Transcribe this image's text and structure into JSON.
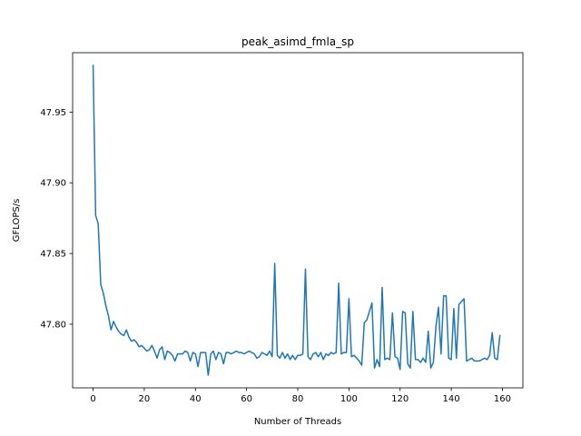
{
  "chart_data": {
    "type": "line",
    "title": "peak_asimd_fmla_sp",
    "xlabel": "Number of Threads",
    "ylabel": "GFLOPS/s",
    "xlim": [
      -8,
      168
    ],
    "ylim": [
      47.755,
      47.992
    ],
    "xticks": [
      0,
      20,
      40,
      60,
      80,
      100,
      120,
      140,
      160
    ],
    "yticks": [
      47.8,
      47.85,
      47.9,
      47.95
    ],
    "ytick_labels": [
      "47.80",
      "47.85",
      "47.90",
      "47.95"
    ],
    "grid": false,
    "line_color": "#1f77b4",
    "series": [
      {
        "x": [
          0,
          1,
          2,
          3,
          4,
          5,
          6,
          7,
          8,
          9,
          10,
          11,
          12,
          13,
          14,
          15,
          16,
          17,
          18,
          19,
          20,
          21,
          22,
          23,
          24,
          25,
          26,
          27,
          28,
          29,
          30,
          31,
          32,
          33,
          34,
          35,
          36,
          37,
          38,
          39,
          40,
          41,
          42,
          43,
          44,
          45,
          46,
          47,
          48,
          49,
          50,
          51,
          52,
          53,
          54,
          55,
          56,
          57,
          58,
          59,
          60,
          61,
          62,
          63,
          64,
          65,
          66,
          67,
          68,
          69,
          70,
          71,
          72,
          73,
          74,
          75,
          76,
          77,
          78,
          79,
          80,
          81,
          82,
          83,
          84,
          85,
          86,
          87,
          88,
          89,
          90,
          91,
          92,
          93,
          94,
          95,
          96,
          97,
          98,
          99,
          100,
          101,
          102,
          103,
          104,
          105,
          106,
          107,
          108,
          109,
          110,
          111,
          112,
          113,
          114,
          115,
          116,
          117,
          118,
          119,
          120,
          121,
          122,
          123,
          124,
          125,
          126,
          127,
          128,
          129,
          130,
          131,
          132,
          133,
          134,
          135,
          136,
          137,
          138,
          139,
          140,
          141,
          142,
          143,
          144,
          145,
          146,
          147,
          148,
          149,
          150,
          151,
          152,
          153,
          154,
          155,
          156,
          157,
          158,
          159
        ],
        "values": [
          47.983,
          47.877,
          47.871,
          47.828,
          47.822,
          47.813,
          47.806,
          47.796,
          47.802,
          47.798,
          47.795,
          47.793,
          47.792,
          47.796,
          47.791,
          47.788,
          47.789,
          47.787,
          47.784,
          47.785,
          47.783,
          47.781,
          47.782,
          47.785,
          47.781,
          47.776,
          47.782,
          47.784,
          47.775,
          47.781,
          47.78,
          47.778,
          47.774,
          47.779,
          47.779,
          47.779,
          47.781,
          47.78,
          47.774,
          47.78,
          47.779,
          47.77,
          47.78,
          47.78,
          47.78,
          47.764,
          47.779,
          47.781,
          47.775,
          47.78,
          47.779,
          47.772,
          47.78,
          47.78,
          47.779,
          47.78,
          47.781,
          47.78,
          47.78,
          47.779,
          47.78,
          47.781,
          47.78,
          47.779,
          47.776,
          47.777,
          47.78,
          47.779,
          47.778,
          47.781,
          47.777,
          47.843,
          47.778,
          47.776,
          47.78,
          47.776,
          47.779,
          47.775,
          47.778,
          47.775,
          47.778,
          47.778,
          47.779,
          47.839,
          47.777,
          47.775,
          47.779,
          47.78,
          47.777,
          47.78,
          47.775,
          47.779,
          47.778,
          47.78,
          47.779,
          47.78,
          47.829,
          47.779,
          47.78,
          47.78,
          47.818,
          47.777,
          47.778,
          47.776,
          47.774,
          47.771,
          47.801,
          47.803,
          47.809,
          47.815,
          47.769,
          47.775,
          47.77,
          47.826,
          47.775,
          47.776,
          47.775,
          47.808,
          47.777,
          47.776,
          47.768,
          47.809,
          47.808,
          47.772,
          47.769,
          47.809,
          47.775,
          47.775,
          47.773,
          47.776,
          47.773,
          47.795,
          47.769,
          47.773,
          47.798,
          47.812,
          47.779,
          47.82,
          47.82,
          47.776,
          47.775,
          47.811,
          47.776,
          47.814,
          47.816,
          47.818,
          47.774,
          47.775,
          47.776,
          47.774,
          47.774,
          47.774,
          47.775,
          47.776,
          47.775,
          47.778,
          47.794,
          47.776,
          47.775,
          47.792
        ]
      }
    ]
  }
}
